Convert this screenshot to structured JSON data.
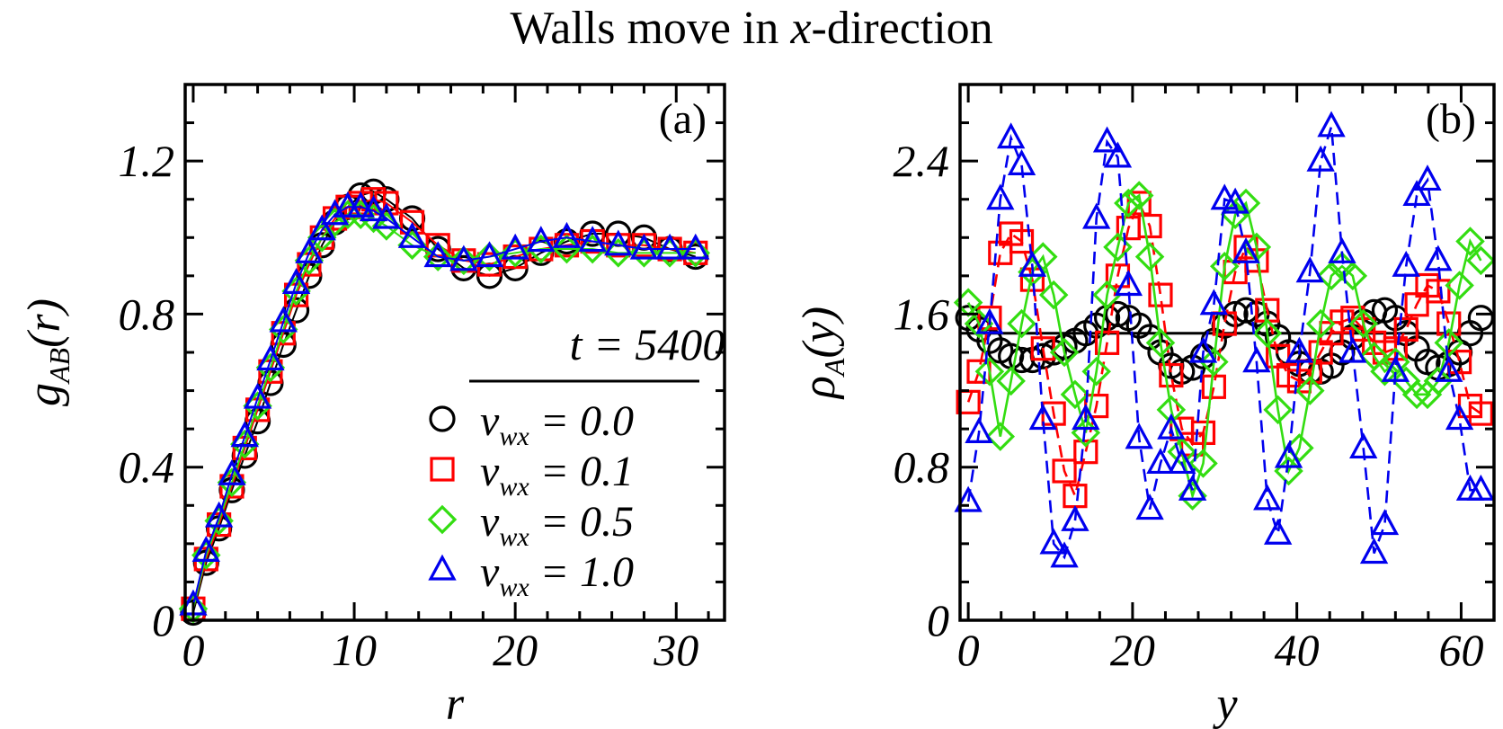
{
  "figure": {
    "title_pre": "Walls move in ",
    "title_var": "x",
    "title_post": "-direction"
  },
  "legend": {
    "header": "t = 5400",
    "entries": [
      "v_wx = 0.0",
      "v_wx = 0.1",
      "v_wx = 0.5",
      "v_wx = 1.0"
    ]
  },
  "series_style": {
    "colors": [
      "#000000",
      "#ff0000",
      "#33dd11",
      "#0000ee"
    ],
    "markers": [
      "circle",
      "square",
      "diamond",
      "triangle"
    ],
    "panel_b_lines": [
      "none",
      "dashed",
      "solid",
      "dashed"
    ]
  },
  "chart_data": [
    {
      "type": "scatter",
      "panel_label": "(a)",
      "xlabel": "r",
      "ylabel": "g_AB(r)",
      "xlim": [
        -0.5,
        33
      ],
      "ylim": [
        0,
        1.4
      ],
      "xticks": [
        0,
        10,
        20,
        30
      ],
      "xtick_labels": [
        "0",
        "10",
        "20",
        "30"
      ],
      "yticks": [
        0,
        0.4,
        0.8,
        1.2
      ],
      "ytick_labels": [
        "0",
        "0.4",
        "0.8",
        "1.2"
      ],
      "legend_position": "bottom-right",
      "series": [
        {
          "name": "v_wx = 0.0",
          "x": [
            0,
            0.8,
            1.6,
            2.4,
            3.2,
            4.0,
            4.8,
            5.6,
            6.4,
            7.2,
            8.0,
            8.8,
            9.6,
            10.4,
            11.2,
            12.0,
            13.6,
            15.2,
            16.8,
            18.4,
            20.0,
            21.6,
            23.2,
            24.8,
            26.4,
            28.0,
            29.6,
            31.2
          ],
          "y": [
            0.02,
            0.15,
            0.24,
            0.34,
            0.43,
            0.52,
            0.62,
            0.72,
            0.81,
            0.9,
            0.98,
            1.04,
            1.08,
            1.11,
            1.12,
            1.1,
            1.05,
            0.97,
            0.92,
            0.9,
            0.92,
            0.96,
            0.99,
            1.01,
            1.01,
            1.0,
            0.97,
            0.95
          ]
        },
        {
          "name": "v_wx = 0.1",
          "x": [
            0,
            0.8,
            1.6,
            2.4,
            3.2,
            4.0,
            4.8,
            5.6,
            6.4,
            7.2,
            8.0,
            8.8,
            9.6,
            10.4,
            11.2,
            12.0,
            13.6,
            15.2,
            16.8,
            18.4,
            20.0,
            21.6,
            23.2,
            24.8,
            26.4,
            28.0,
            29.6,
            31.2
          ],
          "y": [
            0.03,
            0.16,
            0.25,
            0.35,
            0.45,
            0.55,
            0.65,
            0.75,
            0.85,
            0.93,
            1.0,
            1.05,
            1.08,
            1.09,
            1.1,
            1.09,
            1.04,
            0.98,
            0.94,
            0.93,
            0.95,
            0.97,
            0.98,
            0.99,
            0.98,
            0.98,
            0.97,
            0.96
          ]
        },
        {
          "name": "v_wx = 0.5",
          "x": [
            0,
            0.8,
            1.6,
            2.4,
            3.2,
            4.0,
            4.8,
            5.6,
            6.4,
            7.2,
            8.0,
            8.8,
            9.6,
            10.4,
            11.2,
            12.0,
            13.6,
            15.2,
            16.8,
            18.4,
            20.0,
            21.6,
            23.2,
            24.8,
            26.4,
            28.0,
            29.6,
            31.2
          ],
          "y": [
            0.03,
            0.17,
            0.26,
            0.36,
            0.46,
            0.56,
            0.66,
            0.76,
            0.86,
            0.94,
            1.0,
            1.04,
            1.06,
            1.06,
            1.05,
            1.03,
            0.98,
            0.95,
            0.94,
            0.95,
            0.96,
            0.97,
            0.97,
            0.97,
            0.96,
            0.96,
            0.96,
            0.96
          ]
        },
        {
          "name": "v_wx = 1.0",
          "x": [
            0,
            0.8,
            1.6,
            2.4,
            3.2,
            4.0,
            4.8,
            5.6,
            6.4,
            7.2,
            8.0,
            8.8,
            9.6,
            10.4,
            11.2,
            12.0,
            13.6,
            15.2,
            16.8,
            18.4,
            20.0,
            21.6,
            23.2,
            24.8,
            26.4,
            28.0,
            29.6,
            31.2
          ],
          "y": [
            0.04,
            0.18,
            0.27,
            0.38,
            0.48,
            0.58,
            0.68,
            0.78,
            0.88,
            0.96,
            1.02,
            1.06,
            1.08,
            1.08,
            1.07,
            1.05,
            1.0,
            0.95,
            0.94,
            0.95,
            0.97,
            0.99,
            1.0,
            0.99,
            0.98,
            0.97,
            0.97,
            0.97
          ]
        }
      ]
    },
    {
      "type": "line",
      "panel_label": "(b)",
      "xlabel": "y",
      "ylabel": "ρ_A(y)",
      "xlim": [
        -1,
        64
      ],
      "ylim": [
        0,
        2.8
      ],
      "xticks": [
        0,
        20,
        40,
        60
      ],
      "xtick_labels": [
        "0",
        "20",
        "40",
        "60"
      ],
      "yticks": [
        0,
        0.8,
        1.6,
        2.4
      ],
      "ytick_labels": [
        "0",
        "0.8",
        "1.6",
        "2.4"
      ],
      "reference_line_y": 1.5,
      "series": [
        {
          "name": "v_wx = 0.0",
          "x": [
            0,
            1.3,
            2.6,
            3.9,
            5.2,
            6.5,
            7.8,
            9.1,
            10.4,
            11.7,
            13.0,
            14.3,
            15.6,
            16.9,
            18.2,
            19.5,
            20.8,
            22.1,
            23.4,
            24.7,
            26.0,
            27.3,
            28.6,
            29.9,
            31.2,
            32.5,
            33.8,
            35.1,
            36.4,
            37.7,
            39.0,
            40.3,
            41.6,
            42.9,
            44.2,
            45.5,
            46.8,
            48.1,
            49.4,
            50.7,
            52.0,
            53.3,
            54.6,
            55.9,
            57.2,
            58.5,
            59.8,
            61.1,
            62.4
          ],
          "y": [
            1.58,
            1.52,
            1.46,
            1.41,
            1.38,
            1.36,
            1.36,
            1.38,
            1.4,
            1.43,
            1.46,
            1.5,
            1.54,
            1.58,
            1.6,
            1.58,
            1.54,
            1.48,
            1.4,
            1.33,
            1.3,
            1.32,
            1.38,
            1.46,
            1.54,
            1.6,
            1.62,
            1.6,
            1.55,
            1.48,
            1.4,
            1.34,
            1.3,
            1.3,
            1.33,
            1.4,
            1.48,
            1.56,
            1.61,
            1.62,
            1.58,
            1.5,
            1.42,
            1.35,
            1.32,
            1.34,
            1.4,
            1.5,
            1.58
          ]
        },
        {
          "name": "v_wx = 0.1",
          "x": [
            0,
            1.3,
            2.6,
            3.9,
            5.2,
            6.5,
            7.8,
            9.1,
            10.4,
            11.7,
            13.0,
            14.3,
            15.6,
            16.9,
            18.2,
            19.5,
            20.8,
            22.1,
            23.4,
            24.7,
            26.0,
            27.3,
            28.6,
            29.9,
            31.2,
            32.5,
            33.8,
            35.1,
            36.4,
            37.7,
            39.0,
            40.3,
            41.6,
            42.9,
            44.2,
            45.5,
            46.8,
            48.1,
            49.4,
            50.7,
            52.0,
            53.3,
            54.6,
            55.9,
            57.2,
            58.5,
            59.8,
            61.1,
            62.4
          ],
          "y": [
            1.14,
            1.3,
            1.58,
            1.92,
            2.02,
            1.98,
            1.78,
            1.42,
            1.08,
            0.78,
            0.65,
            0.88,
            1.12,
            1.45,
            1.8,
            2.05,
            2.18,
            2.06,
            1.7,
            1.28,
            1.0,
            0.92,
            0.98,
            1.22,
            1.55,
            1.82,
            1.95,
            1.88,
            1.62,
            1.38,
            1.28,
            1.25,
            1.3,
            1.4,
            1.5,
            1.56,
            1.58,
            1.52,
            1.45,
            1.4,
            1.42,
            1.52,
            1.65,
            1.75,
            1.72,
            1.55,
            1.35,
            1.12,
            1.08
          ]
        },
        {
          "name": "v_wx = 0.5",
          "x": [
            0,
            1.3,
            2.6,
            3.9,
            5.2,
            6.5,
            7.8,
            9.1,
            10.4,
            11.7,
            13.0,
            14.3,
            15.6,
            16.9,
            18.2,
            19.5,
            20.8,
            22.1,
            23.4,
            24.7,
            26.0,
            27.3,
            28.6,
            29.9,
            31.2,
            32.5,
            33.8,
            35.1,
            36.4,
            37.7,
            39.0,
            40.3,
            41.6,
            42.9,
            44.2,
            45.5,
            46.8,
            48.1,
            49.4,
            50.7,
            52.0,
            53.3,
            54.6,
            55.9,
            57.2,
            58.5,
            59.8,
            61.1,
            62.4
          ],
          "y": [
            1.66,
            1.55,
            1.3,
            0.96,
            1.25,
            1.55,
            1.82,
            1.9,
            1.7,
            1.4,
            1.18,
            0.98,
            1.3,
            1.7,
            1.95,
            2.18,
            2.22,
            1.9,
            1.45,
            1.1,
            0.88,
            0.65,
            0.82,
            1.35,
            1.85,
            2.12,
            2.18,
            1.95,
            1.5,
            1.1,
            0.78,
            0.9,
            1.2,
            1.55,
            1.8,
            1.85,
            1.8,
            1.55,
            1.38,
            1.3,
            1.35,
            1.25,
            1.18,
            1.18,
            1.25,
            1.45,
            1.75,
            1.98,
            1.88
          ]
        },
        {
          "name": "v_wx = 1.0",
          "x": [
            0,
            1.3,
            2.6,
            3.9,
            5.2,
            6.5,
            7.8,
            9.1,
            10.4,
            11.7,
            13.0,
            14.3,
            15.6,
            16.9,
            18.2,
            19.5,
            20.8,
            22.1,
            23.4,
            24.7,
            26.0,
            27.3,
            28.6,
            29.9,
            31.2,
            32.5,
            33.8,
            35.1,
            36.4,
            37.7,
            39.0,
            40.3,
            41.6,
            42.9,
            44.2,
            45.5,
            46.8,
            48.1,
            49.4,
            50.7,
            52.0,
            53.3,
            54.6,
            55.9,
            57.2,
            58.5,
            59.8,
            61.1,
            62.4
          ],
          "y": [
            0.62,
            0.98,
            1.55,
            2.2,
            2.52,
            2.38,
            1.85,
            1.05,
            0.4,
            0.33,
            0.52,
            1.05,
            2.1,
            2.5,
            2.42,
            1.75,
            0.95,
            0.58,
            0.82,
            1.0,
            0.82,
            0.68,
            1.4,
            1.65,
            2.2,
            2.18,
            1.92,
            1.35,
            0.63,
            0.45,
            0.85,
            1.4,
            1.82,
            2.4,
            2.58,
            1.92,
            1.4,
            0.9,
            0.35,
            0.5,
            1.3,
            1.85,
            2.22,
            2.3,
            1.88,
            1.3,
            1.05,
            0.68,
            0.68
          ]
        }
      ]
    }
  ]
}
